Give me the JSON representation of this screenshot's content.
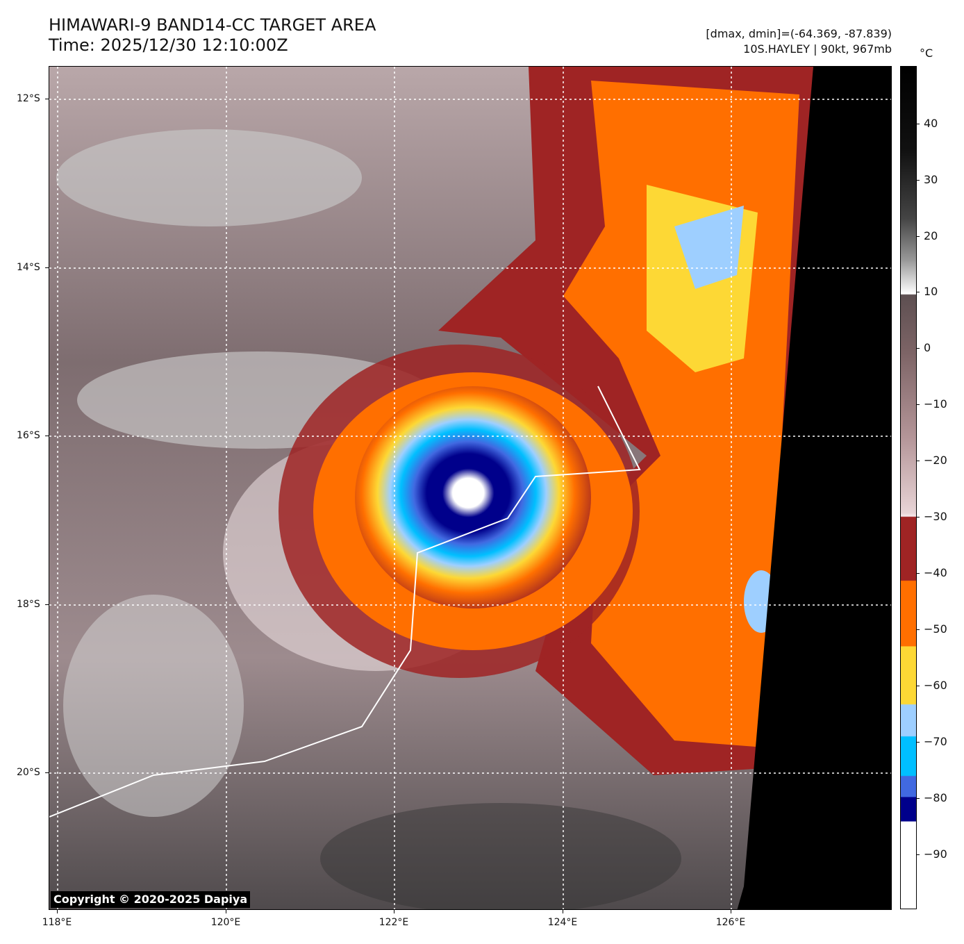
{
  "header": {
    "title_line1": "HIMAWARI-9 BAND14-CC TARGET AREA",
    "title_line2": "Time: 2025/12/30 12:10:00Z",
    "dmax_dmin": "[dmax, dmin]=(-64.369, -87.839)",
    "storm": "10S.HAYLEY | 90kt, 967mb"
  },
  "map": {
    "lat_labels": [
      "12°S",
      "14°S",
      "16°S",
      "18°S",
      "20°S"
    ],
    "lon_labels": [
      "118°E",
      "120°E",
      "122°E",
      "124°E",
      "126°E"
    ],
    "copyright": "Copyright © 2020-2025 Dapiya"
  },
  "colorbar": {
    "unit": "°C",
    "ticks": [
      "40",
      "30",
      "20",
      "10",
      "0",
      "−10",
      "−20",
      "−30",
      "−40",
      "−50",
      "−60",
      "−70",
      "−80",
      "−90"
    ],
    "colors": {
      "warm_black": "#000000",
      "brown_gray": "#5d4f51",
      "pink": "#f6eaec",
      "dark_red": "#9f2424",
      "orange": "#ff6f00",
      "yellow": "#fdd835",
      "light_blue": "#9ecfff",
      "deep_sky_blue": "#00bfff",
      "royal_blue": "#4169e1",
      "dark_blue": "#00008b",
      "white": "#ffffff"
    }
  }
}
